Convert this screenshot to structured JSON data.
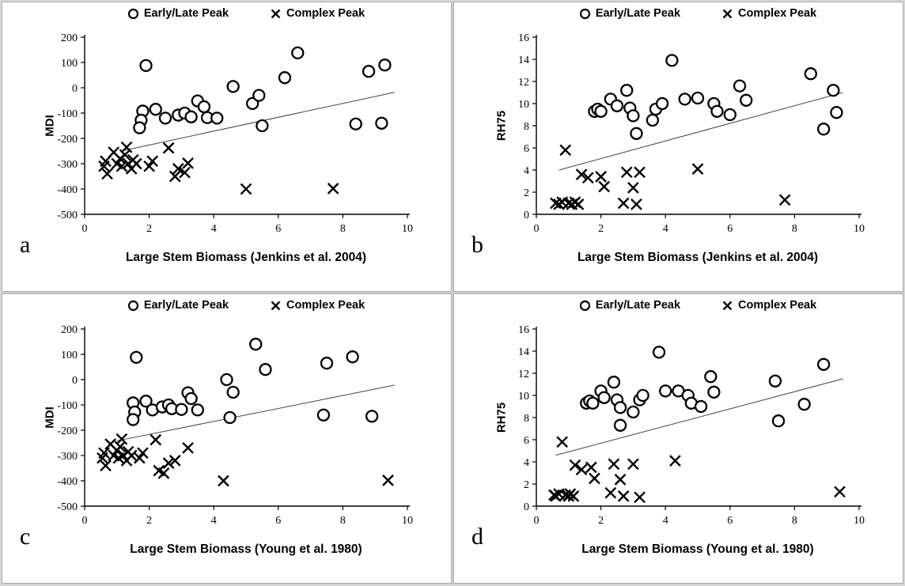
{
  "chart_data": [
    {
      "type": "scatter",
      "panel_label": "a",
      "xlabel": "Large Stem Biomass (Jenkins et al. 2004)",
      "ylabel": "MDI",
      "xlim": [
        0,
        10
      ],
      "ylim": [
        -500,
        200
      ],
      "xticks": [
        0,
        2,
        4,
        6,
        8,
        10
      ],
      "yticks": [
        200,
        100,
        0,
        -100,
        -200,
        -300,
        -400,
        -500
      ],
      "grid": false,
      "legend_position": "top",
      "series": [
        {
          "name": "Early/Late Peak",
          "marker": "circle",
          "points": [
            [
              1.9,
              88
            ],
            [
              1.8,
              -92
            ],
            [
              1.75,
              -128
            ],
            [
              1.7,
              -158
            ],
            [
              2.2,
              -85
            ],
            [
              2.5,
              -120
            ],
            [
              2.9,
              -108
            ],
            [
              3.1,
              -100
            ],
            [
              3.3,
              -115
            ],
            [
              3.5,
              -52
            ],
            [
              3.7,
              -75
            ],
            [
              3.8,
              -118
            ],
            [
              4.1,
              -120
            ],
            [
              4.6,
              5
            ],
            [
              5.2,
              -62
            ],
            [
              5.4,
              -30
            ],
            [
              5.5,
              -150
            ],
            [
              6.2,
              40
            ],
            [
              6.6,
              138
            ],
            [
              8.4,
              -143
            ],
            [
              8.8,
              65
            ],
            [
              9.2,
              -140
            ],
            [
              9.3,
              90
            ]
          ]
        },
        {
          "name": "Complex Peak",
          "marker": "x",
          "points": [
            [
              0.6,
              -310
            ],
            [
              0.65,
              -290
            ],
            [
              0.7,
              -340
            ],
            [
              0.9,
              -255
            ],
            [
              1.0,
              -300
            ],
            [
              1.1,
              -280
            ],
            [
              1.15,
              -310
            ],
            [
              1.25,
              -265
            ],
            [
              1.3,
              -235
            ],
            [
              1.35,
              -300
            ],
            [
              1.45,
              -320
            ],
            [
              1.5,
              -285
            ],
            [
              1.6,
              -300
            ],
            [
              2.0,
              -310
            ],
            [
              2.1,
              -290
            ],
            [
              2.6,
              -238
            ],
            [
              2.8,
              -350
            ],
            [
              2.9,
              -320
            ],
            [
              3.1,
              -335
            ],
            [
              3.2,
              -298
            ],
            [
              5.0,
              -400
            ],
            [
              7.7,
              -398
            ]
          ]
        }
      ],
      "trendline": {
        "x1": 1.2,
        "y1": -248,
        "x2": 9.6,
        "y2": -18
      }
    },
    {
      "type": "scatter",
      "panel_label": "b",
      "xlabel": "Large Stem Biomass (Jenkins et al. 2004)",
      "ylabel": "RH75",
      "xlim": [
        0,
        10
      ],
      "ylim": [
        0,
        16
      ],
      "xticks": [
        0,
        2,
        4,
        6,
        8,
        10
      ],
      "yticks": [
        16,
        14,
        12,
        10,
        8,
        6,
        4,
        2,
        0
      ],
      "grid": false,
      "legend_position": "top",
      "series": [
        {
          "name": "Early/Late Peak",
          "marker": "circle",
          "points": [
            [
              1.8,
              9.3
            ],
            [
              1.9,
              9.5
            ],
            [
              2.0,
              9.3
            ],
            [
              2.3,
              10.4
            ],
            [
              2.5,
              9.8
            ],
            [
              2.8,
              11.2
            ],
            [
              2.9,
              9.6
            ],
            [
              3.0,
              8.9
            ],
            [
              3.1,
              7.3
            ],
            [
              3.6,
              8.5
            ],
            [
              3.7,
              9.5
            ],
            [
              3.9,
              10.0
            ],
            [
              4.2,
              13.9
            ],
            [
              4.6,
              10.4
            ],
            [
              5.0,
              10.5
            ],
            [
              5.5,
              10.0
            ],
            [
              5.6,
              9.3
            ],
            [
              6.0,
              9.0
            ],
            [
              6.3,
              11.6
            ],
            [
              6.5,
              10.3
            ],
            [
              8.5,
              12.7
            ],
            [
              8.9,
              7.7
            ],
            [
              9.2,
              11.2
            ],
            [
              9.3,
              9.2
            ]
          ]
        },
        {
          "name": "Complex Peak",
          "marker": "x",
          "points": [
            [
              0.6,
              1.0
            ],
            [
              0.7,
              0.9
            ],
            [
              0.8,
              1.1
            ],
            [
              0.9,
              5.8
            ],
            [
              1.0,
              1.0
            ],
            [
              1.1,
              0.9
            ],
            [
              1.2,
              1.1
            ],
            [
              1.3,
              0.9
            ],
            [
              1.4,
              3.6
            ],
            [
              1.6,
              3.3
            ],
            [
              2.0,
              3.4
            ],
            [
              2.1,
              2.5
            ],
            [
              2.7,
              1.0
            ],
            [
              2.8,
              3.8
            ],
            [
              3.0,
              2.4
            ],
            [
              3.1,
              0.9
            ],
            [
              3.2,
              3.8
            ],
            [
              5.0,
              4.1
            ],
            [
              7.7,
              1.3
            ]
          ]
        }
      ],
      "trendline": {
        "x1": 0.7,
        "y1": 4.0,
        "x2": 9.5,
        "y2": 11.0
      }
    },
    {
      "type": "scatter",
      "panel_label": "c",
      "xlabel": "Large Stem Biomass (Young et al. 1980)",
      "ylabel": "MDI",
      "xlim": [
        0,
        10
      ],
      "ylim": [
        -500,
        200
      ],
      "xticks": [
        0,
        2,
        4,
        6,
        8,
        10
      ],
      "yticks": [
        200,
        100,
        0,
        -100,
        -200,
        -300,
        -400,
        -500
      ],
      "grid": false,
      "legend_position": "top",
      "series": [
        {
          "name": "Early/Late Peak",
          "marker": "circle",
          "points": [
            [
              1.6,
              88
            ],
            [
              1.5,
              -92
            ],
            [
              1.55,
              -128
            ],
            [
              1.5,
              -158
            ],
            [
              1.9,
              -85
            ],
            [
              2.1,
              -120
            ],
            [
              2.4,
              -108
            ],
            [
              2.6,
              -100
            ],
            [
              2.7,
              -115
            ],
            [
              3.0,
              -118
            ],
            [
              3.2,
              -52
            ],
            [
              3.3,
              -75
            ],
            [
              3.5,
              -120
            ],
            [
              4.4,
              0
            ],
            [
              4.6,
              -50
            ],
            [
              4.5,
              -150
            ],
            [
              5.3,
              140
            ],
            [
              5.6,
              40
            ],
            [
              7.4,
              -140
            ],
            [
              7.5,
              65
            ],
            [
              8.3,
              90
            ],
            [
              8.9,
              -145
            ]
          ]
        },
        {
          "name": "Complex Peak",
          "marker": "x",
          "points": [
            [
              0.55,
              -310
            ],
            [
              0.6,
              -290
            ],
            [
              0.65,
              -340
            ],
            [
              0.8,
              -255
            ],
            [
              0.9,
              -300
            ],
            [
              1.0,
              -280
            ],
            [
              1.05,
              -310
            ],
            [
              1.1,
              -265
            ],
            [
              1.15,
              -235
            ],
            [
              1.2,
              -300
            ],
            [
              1.3,
              -320
            ],
            [
              1.35,
              -285
            ],
            [
              1.45,
              -300
            ],
            [
              1.7,
              -310
            ],
            [
              1.8,
              -290
            ],
            [
              2.2,
              -238
            ],
            [
              2.3,
              -360
            ],
            [
              2.45,
              -370
            ],
            [
              2.6,
              -330
            ],
            [
              2.8,
              -320
            ],
            [
              3.2,
              -270
            ],
            [
              4.3,
              -400
            ],
            [
              9.4,
              -398
            ]
          ]
        }
      ],
      "trendline": {
        "x1": 1.0,
        "y1": -242,
        "x2": 9.6,
        "y2": -22
      }
    },
    {
      "type": "scatter",
      "panel_label": "d",
      "xlabel": "Large Stem Biomass (Young et al. 1980)",
      "ylabel": "RH75",
      "xlim": [
        0,
        10
      ],
      "ylim": [
        0,
        16
      ],
      "xticks": [
        0,
        2,
        4,
        6,
        8,
        10
      ],
      "yticks": [
        16,
        14,
        12,
        10,
        8,
        6,
        4,
        2,
        0
      ],
      "grid": false,
      "legend_position": "top",
      "series": [
        {
          "name": "Early/Late Peak",
          "marker": "circle",
          "points": [
            [
              1.55,
              9.3
            ],
            [
              1.65,
              9.5
            ],
            [
              1.75,
              9.3
            ],
            [
              2.0,
              10.4
            ],
            [
              2.1,
              9.8
            ],
            [
              2.4,
              11.2
            ],
            [
              2.5,
              9.6
            ],
            [
              2.6,
              8.9
            ],
            [
              2.6,
              7.3
            ],
            [
              3.0,
              8.5
            ],
            [
              3.2,
              9.6
            ],
            [
              3.3,
              10.0
            ],
            [
              3.8,
              13.9
            ],
            [
              4.0,
              10.4
            ],
            [
              4.4,
              10.4
            ],
            [
              4.7,
              10.0
            ],
            [
              4.8,
              9.3
            ],
            [
              5.1,
              9.0
            ],
            [
              5.4,
              11.7
            ],
            [
              5.5,
              10.3
            ],
            [
              7.4,
              11.3
            ],
            [
              7.5,
              7.7
            ],
            [
              8.3,
              9.2
            ],
            [
              8.9,
              12.8
            ]
          ]
        },
        {
          "name": "Complex Peak",
          "marker": "x",
          "points": [
            [
              0.55,
              1.0
            ],
            [
              0.6,
              0.9
            ],
            [
              0.7,
              1.1
            ],
            [
              0.8,
              5.8
            ],
            [
              0.9,
              1.0
            ],
            [
              1.0,
              0.9
            ],
            [
              1.05,
              1.1
            ],
            [
              1.15,
              0.9
            ],
            [
              1.2,
              3.7
            ],
            [
              1.4,
              3.3
            ],
            [
              1.7,
              3.5
            ],
            [
              1.8,
              2.5
            ],
            [
              2.3,
              1.2
            ],
            [
              2.4,
              3.8
            ],
            [
              2.6,
              2.4
            ],
            [
              2.7,
              0.9
            ],
            [
              3.0,
              3.8
            ],
            [
              3.2,
              0.8
            ],
            [
              4.3,
              4.1
            ],
            [
              9.4,
              1.3
            ]
          ]
        }
      ],
      "trendline": {
        "x1": 0.6,
        "y1": 4.6,
        "x2": 9.5,
        "y2": 11.5
      }
    }
  ],
  "colors": {
    "marker": "#000000",
    "background": "#ffffff",
    "panel_border": "#ababab",
    "trendline": "#444444"
  }
}
